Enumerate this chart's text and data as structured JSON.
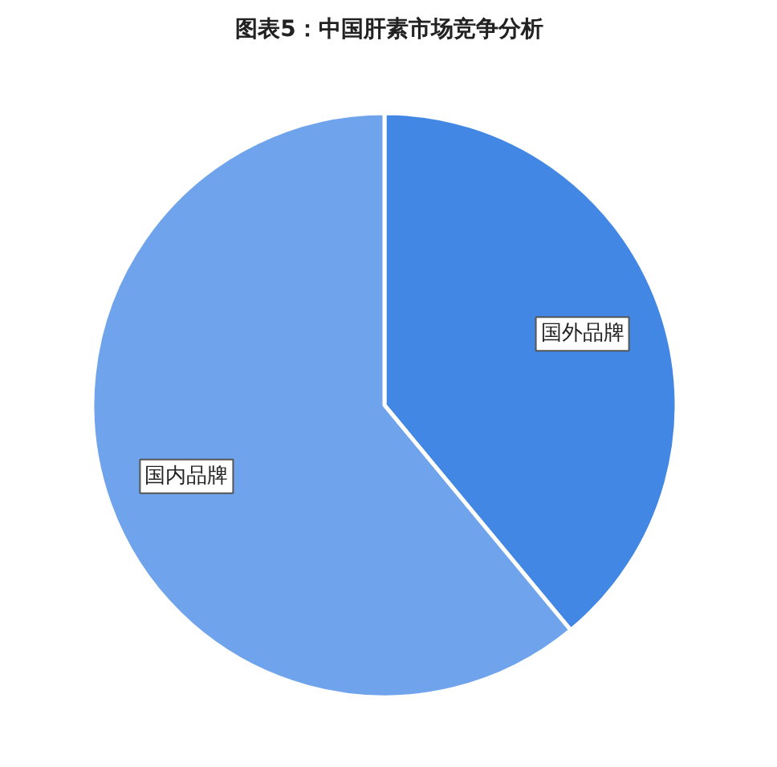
{
  "chart_data": {
    "type": "pie",
    "title": "图表5：中国肝素市场竞争分析",
    "categories": [
      "国外品牌",
      "国内品牌"
    ],
    "values": [
      39,
      61
    ],
    "colors": [
      "#4287e4",
      "#6fa3ec"
    ]
  }
}
